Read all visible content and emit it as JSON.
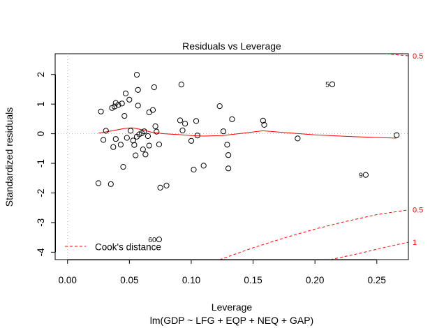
{
  "chart_data": {
    "type": "scatter",
    "title": "Residuals vs Leverage",
    "xlabel": "Leverage",
    "ylabel": "Standardized residuals",
    "subtitle": "lm(GDP ~ LFG + EQP + NEQ + GAP)",
    "xlim": [
      -0.01,
      0.2755
    ],
    "ylim": [
      -4.25,
      2.7
    ],
    "x_ticks": [
      0.0,
      0.05,
      0.1,
      0.15,
      0.2,
      0.25
    ],
    "x_tick_labels": [
      "0.00",
      "0.05",
      "0.10",
      "0.15",
      "0.20",
      "0.25"
    ],
    "y_ticks": [
      -4,
      -3,
      -2,
      -1,
      0,
      1,
      2
    ],
    "y_tick_labels": [
      "-4",
      "-3",
      "-2",
      "-1",
      "0",
      "1",
      "2"
    ],
    "colors": {
      "points": "#000000",
      "smooth": "#ff0000",
      "cooks": "#ff0000",
      "reference": "#b0b0b0"
    },
    "points": [
      {
        "x": 0.025,
        "y": -1.67
      },
      {
        "x": 0.027,
        "y": 0.75
      },
      {
        "x": 0.029,
        "y": -0.21
      },
      {
        "x": 0.031,
        "y": 0.1
      },
      {
        "x": 0.035,
        "y": -1.7
      },
      {
        "x": 0.036,
        "y": 0.87
      },
      {
        "x": 0.037,
        "y": -0.45
      },
      {
        "x": 0.038,
        "y": 0.92
      },
      {
        "x": 0.039,
        "y": 1.04
      },
      {
        "x": 0.039,
        "y": -0.18
      },
      {
        "x": 0.041,
        "y": 0.97
      },
      {
        "x": 0.043,
        "y": -0.37
      },
      {
        "x": 0.044,
        "y": 1.02
      },
      {
        "x": 0.045,
        "y": -1.12
      },
      {
        "x": 0.046,
        "y": 0.6
      },
      {
        "x": 0.047,
        "y": 1.36
      },
      {
        "x": 0.048,
        "y": -0.14
      },
      {
        "x": 0.05,
        "y": 1.15
      },
      {
        "x": 0.051,
        "y": 0.1
      },
      {
        "x": 0.053,
        "y": -0.23
      },
      {
        "x": 0.054,
        "y": -0.38
      },
      {
        "x": 0.055,
        "y": -0.73
      },
      {
        "x": 0.056,
        "y": 1.99
      },
      {
        "x": 0.056,
        "y": -0.1
      },
      {
        "x": 0.057,
        "y": 1.48
      },
      {
        "x": 0.057,
        "y": 0.95
      },
      {
        "x": 0.058,
        "y": -0.02
      },
      {
        "x": 0.06,
        "y": 0.02
      },
      {
        "x": 0.061,
        "y": -0.53
      },
      {
        "x": 0.062,
        "y": 0.08
      },
      {
        "x": 0.063,
        "y": -0.7
      },
      {
        "x": 0.065,
        "y": -0.08
      },
      {
        "x": 0.066,
        "y": 0.72
      },
      {
        "x": 0.066,
        "y": -0.4
      },
      {
        "x": 0.069,
        "y": 0.8
      },
      {
        "x": 0.07,
        "y": 1.57
      },
      {
        "x": 0.071,
        "y": 0.25
      },
      {
        "x": 0.072,
        "y": 0.07
      },
      {
        "x": 0.074,
        "y": -0.36
      },
      {
        "x": 0.075,
        "y": -1.82
      },
      {
        "x": 0.08,
        "y": -1.75
      },
      {
        "x": 0.074,
        "y": -3.57
      },
      {
        "x": 0.091,
        "y": 0.45
      },
      {
        "x": 0.092,
        "y": 1.66
      },
      {
        "x": 0.093,
        "y": 0.11
      },
      {
        "x": 0.095,
        "y": 0.34
      },
      {
        "x": 0.1,
        "y": -0.24
      },
      {
        "x": 0.102,
        "y": -1.21
      },
      {
        "x": 0.104,
        "y": 0.43
      },
      {
        "x": 0.105,
        "y": -0.06
      },
      {
        "x": 0.11,
        "y": -1.08
      },
      {
        "x": 0.123,
        "y": 0.93
      },
      {
        "x": 0.126,
        "y": 0.08
      },
      {
        "x": 0.129,
        "y": -0.37
      },
      {
        "x": 0.13,
        "y": -1.17
      },
      {
        "x": 0.13,
        "y": -0.72
      },
      {
        "x": 0.133,
        "y": 0.49
      },
      {
        "x": 0.158,
        "y": 0.44
      },
      {
        "x": 0.159,
        "y": 0.3
      },
      {
        "x": 0.186,
        "y": -0.16
      },
      {
        "x": 0.214,
        "y": 1.67
      },
      {
        "x": 0.241,
        "y": -1.39
      },
      {
        "x": 0.266,
        "y": -0.05
      }
    ],
    "point_labels": [
      {
        "text": "5",
        "x": 0.214,
        "y": 1.67
      },
      {
        "text": "9",
        "x": 0.241,
        "y": -1.39
      },
      {
        "text": "60",
        "x": 0.074,
        "y": -3.57
      }
    ],
    "smooth_line": [
      {
        "x": 0.025,
        "y": 0.02
      },
      {
        "x": 0.035,
        "y": 0.09
      },
      {
        "x": 0.045,
        "y": 0.17
      },
      {
        "x": 0.052,
        "y": 0.2
      },
      {
        "x": 0.06,
        "y": 0.14
      },
      {
        "x": 0.068,
        "y": 0.05
      },
      {
        "x": 0.078,
        "y": 0.0
      },
      {
        "x": 0.09,
        "y": -0.03
      },
      {
        "x": 0.1,
        "y": -0.06
      },
      {
        "x": 0.11,
        "y": -0.08
      },
      {
        "x": 0.125,
        "y": -0.06
      },
      {
        "x": 0.14,
        "y": 0.01
      },
      {
        "x": 0.158,
        "y": 0.1
      },
      {
        "x": 0.175,
        "y": 0.04
      },
      {
        "x": 0.2,
        "y": -0.04
      },
      {
        "x": 0.23,
        "y": -0.1
      },
      {
        "x": 0.266,
        "y": -0.15
      }
    ],
    "cooks_contours": [
      {
        "level": "0.5",
        "sign": 1,
        "points": [
          {
            "x": 0.2535,
            "y": 2.72
          },
          {
            "x": 0.262,
            "y": 2.68
          },
          {
            "x": 0.2755,
            "y": 2.63
          }
        ]
      },
      {
        "level": "0.5",
        "sign": -1,
        "points": [
          {
            "x": 0.123,
            "y": -4.25
          },
          {
            "x": 0.15,
            "y": -3.85
          },
          {
            "x": 0.175,
            "y": -3.52
          },
          {
            "x": 0.2,
            "y": -3.22
          },
          {
            "x": 0.225,
            "y": -2.96
          },
          {
            "x": 0.25,
            "y": -2.73
          },
          {
            "x": 0.2755,
            "y": -2.57
          }
        ]
      },
      {
        "level": "1",
        "sign": -1,
        "points": [
          {
            "x": 0.2125,
            "y": -4.25
          },
          {
            "x": 0.235,
            "y": -4.05
          },
          {
            "x": 0.255,
            "y": -3.85
          },
          {
            "x": 0.2755,
            "y": -3.66
          }
        ]
      }
    ],
    "legend": {
      "label": "Cook's distance",
      "placement": "bottom-left"
    }
  }
}
